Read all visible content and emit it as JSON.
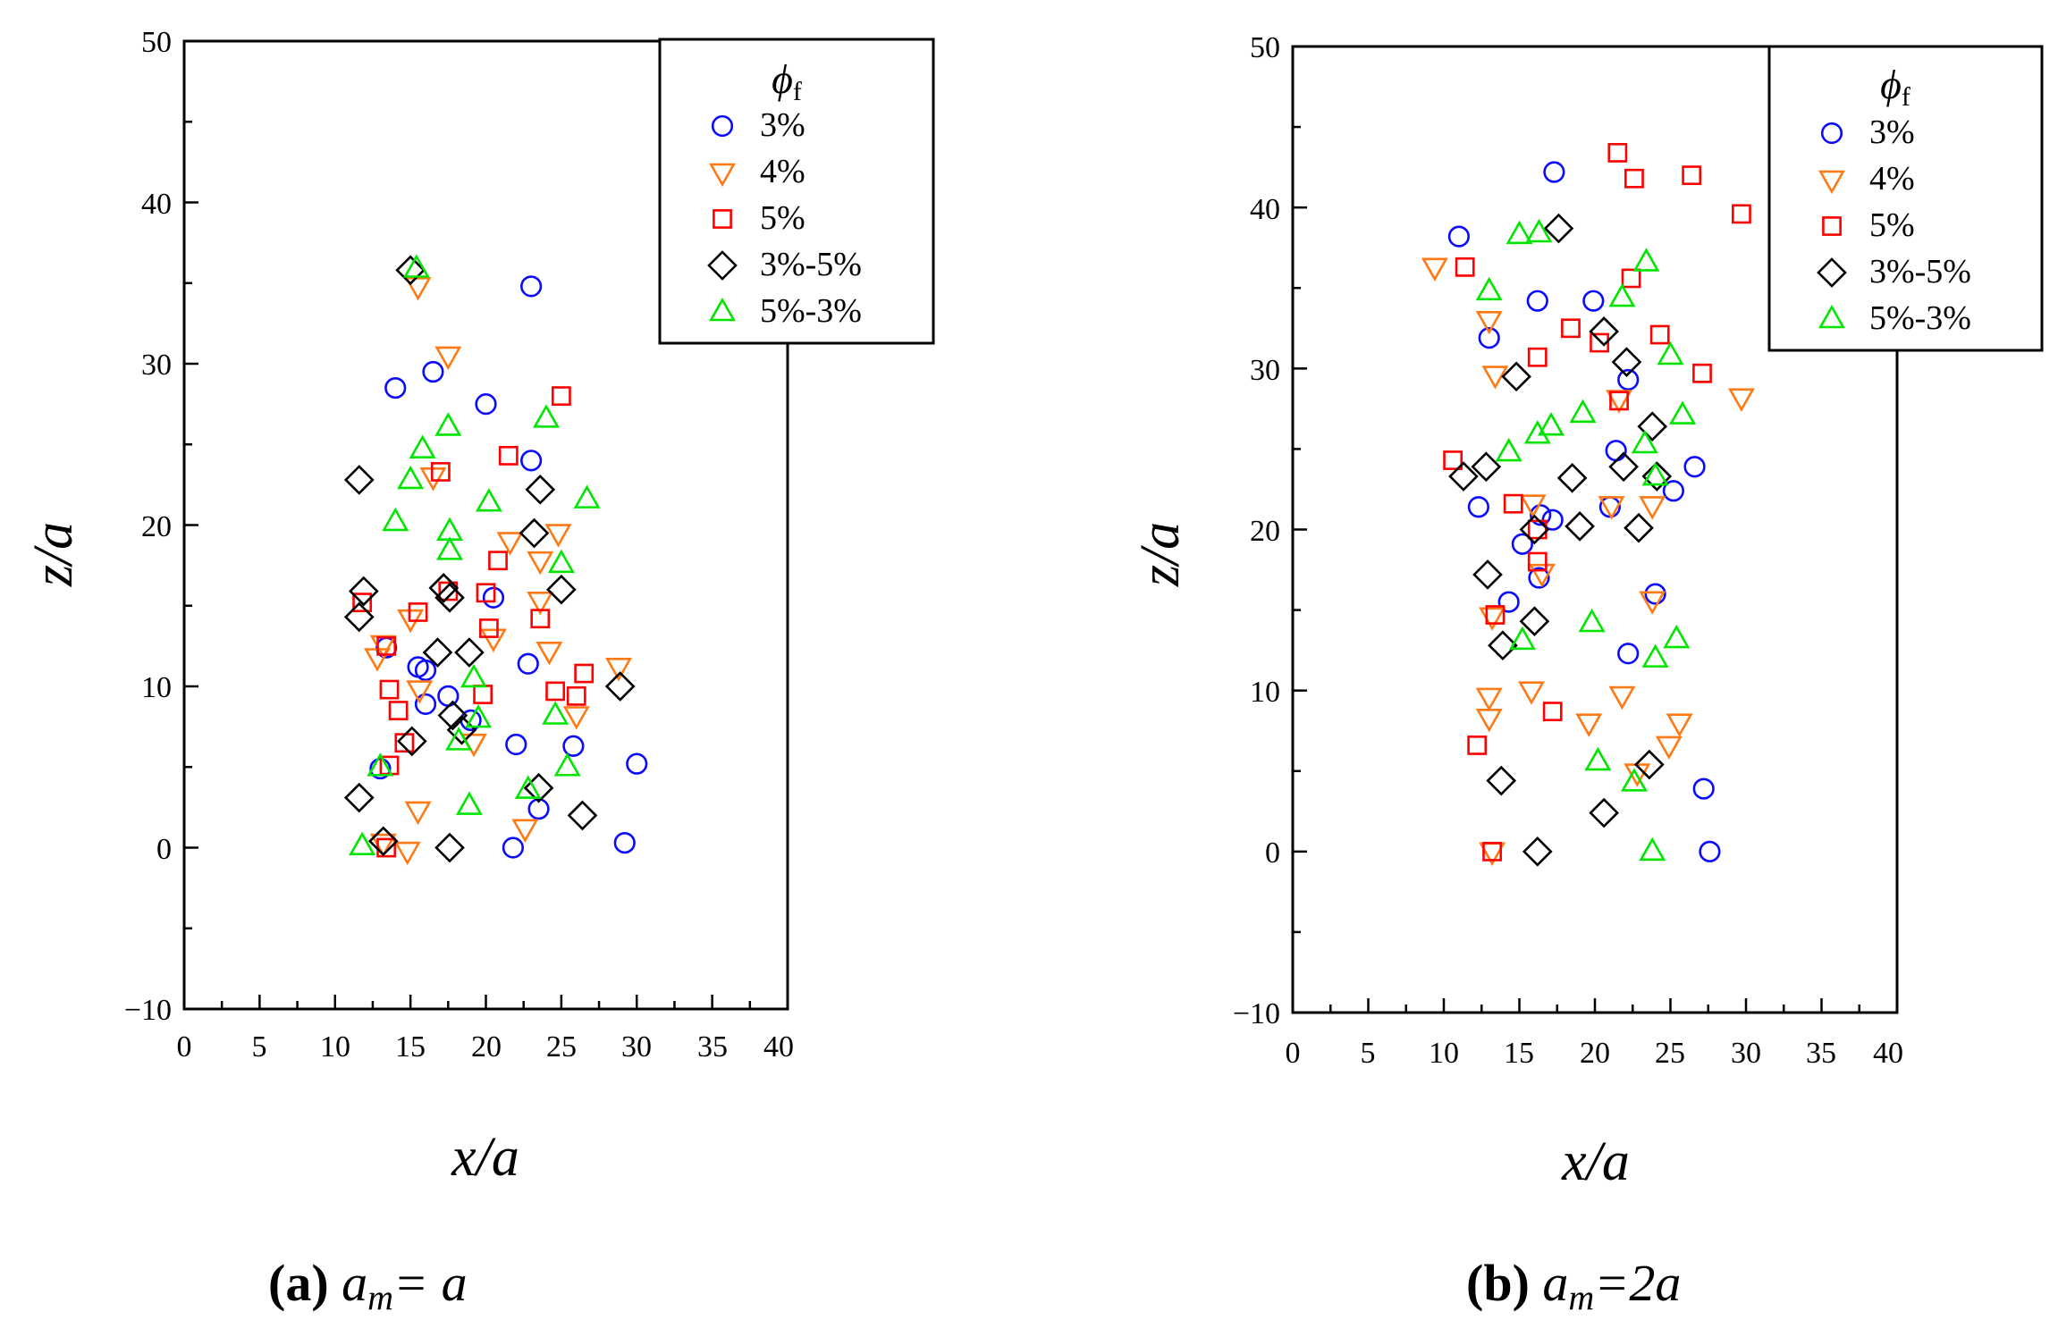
{
  "colors": {
    "3%": "#0a0aff",
    "4%": "#ff7a14",
    "5%": "#ff0000",
    "3%-5%": "#000000",
    "5%-3%": "#00e600"
  },
  "chart_data": [
    {
      "type": "scatter",
      "caption": {
        "label": "(a)",
        "var": "a",
        "sub": "m",
        "rhs": "= a"
      },
      "xlabel": "x/a",
      "ylabel": "z/a",
      "xlim": [
        0,
        40
      ],
      "ylim": [
        -10,
        50
      ],
      "xticks": [
        "0",
        "5",
        "10",
        "15",
        "20",
        "25",
        "30",
        "35",
        "40"
      ],
      "yticks": [
        "−10",
        "0",
        "10",
        "20",
        "30",
        "40",
        "50"
      ],
      "legend": {
        "title": "ϕ",
        "title_sub": "f",
        "position": "top-right",
        "entries": [
          "3%",
          "4%",
          "5%",
          "3%-5%",
          "5%-3%"
        ]
      },
      "series": [
        {
          "name": "3%",
          "marker": "circle",
          "points": [
            [
              23,
              34.8
            ],
            [
              16.5,
              29.5
            ],
            [
              14,
              28.5
            ],
            [
              20,
              27.5
            ],
            [
              23,
              24
            ],
            [
              20.5,
              15.5
            ],
            [
              15.5,
              11.2
            ],
            [
              16,
              11
            ],
            [
              17.5,
              9.4
            ],
            [
              16,
              8.9
            ],
            [
              19,
              7.9
            ],
            [
              22.8,
              11.4
            ],
            [
              22,
              6.4
            ],
            [
              25.8,
              6.3
            ],
            [
              30,
              5.2
            ],
            [
              13,
              4.9
            ],
            [
              23.5,
              2.4
            ],
            [
              29.2,
              0.3
            ],
            [
              21.8,
              0
            ],
            [
              13.4,
              12.4
            ]
          ]
        },
        {
          "name": "4%",
          "marker": "triangle-down",
          "points": [
            [
              15.5,
              34.8
            ],
            [
              17.5,
              30.5
            ],
            [
              16.5,
              23
            ],
            [
              24.8,
              19.5
            ],
            [
              21.6,
              19
            ],
            [
              23.6,
              17.8
            ],
            [
              23.6,
              15.3
            ],
            [
              20.5,
              13
            ],
            [
              24.2,
              12.2
            ],
            [
              15,
              14.2
            ],
            [
              12.8,
              11.8
            ],
            [
              28.8,
              11.2
            ],
            [
              15.6,
              9.8
            ],
            [
              26,
              8.2
            ],
            [
              19.2,
              6.5
            ],
            [
              15.5,
              2.3
            ],
            [
              22.6,
              1.2
            ],
            [
              14.8,
              -0.2
            ],
            [
              13.2,
              0.3
            ],
            [
              13.2,
              12.6
            ]
          ]
        },
        {
          "name": "5%",
          "marker": "square",
          "points": [
            [
              25,
              28
            ],
            [
              21.5,
              24.3
            ],
            [
              17,
              23.3
            ],
            [
              20.8,
              17.8
            ],
            [
              17.5,
              15.9
            ],
            [
              20,
              15.8
            ],
            [
              11.8,
              15.2
            ],
            [
              15.5,
              14.6
            ],
            [
              23.6,
              14.2
            ],
            [
              20.2,
              13.6
            ],
            [
              13.4,
              12.5
            ],
            [
              26.5,
              10.8
            ],
            [
              13.6,
              9.8
            ],
            [
              19.8,
              9.5
            ],
            [
              24.6,
              9.7
            ],
            [
              26,
              9.4
            ],
            [
              14.2,
              8.5
            ],
            [
              14.6,
              6.5
            ],
            [
              13.6,
              5.1
            ],
            [
              13.4,
              0
            ]
          ]
        },
        {
          "name": "3%-5%",
          "marker": "diamond",
          "points": [
            [
              15,
              35.8
            ],
            [
              11.6,
              22.8
            ],
            [
              23.6,
              22.2
            ],
            [
              23.2,
              19.5
            ],
            [
              17.2,
              16.1
            ],
            [
              17.6,
              15.5
            ],
            [
              25,
              16
            ],
            [
              11.9,
              15.9
            ],
            [
              11.6,
              14.3
            ],
            [
              16.8,
              12.1
            ],
            [
              18.9,
              12.1
            ],
            [
              28.9,
              10
            ],
            [
              17.8,
              8.2
            ],
            [
              18.4,
              7.3
            ],
            [
              15.1,
              6.6
            ],
            [
              11.6,
              3.1
            ],
            [
              23.5,
              3.7
            ],
            [
              26.4,
              2
            ],
            [
              13.2,
              0.4
            ],
            [
              17.6,
              0
            ]
          ]
        },
        {
          "name": "5%-3%",
          "marker": "triangle-up",
          "points": [
            [
              15.4,
              35.9
            ],
            [
              15.8,
              24.7
            ],
            [
              17.5,
              26.1
            ],
            [
              24,
              26.6
            ],
            [
              15,
              22.8
            ],
            [
              20.2,
              21.4
            ],
            [
              26.7,
              21.6
            ],
            [
              14,
              20.2
            ],
            [
              17.6,
              19.6
            ],
            [
              17.6,
              18.4
            ],
            [
              25,
              17.6
            ],
            [
              19.2,
              10.5
            ],
            [
              19.5,
              8
            ],
            [
              24.6,
              8.2
            ],
            [
              18.2,
              6.6
            ],
            [
              25.4,
              5
            ],
            [
              13,
              5
            ],
            [
              18.9,
              2.6
            ],
            [
              22.8,
              3.6
            ],
            [
              11.8,
              0.1
            ]
          ]
        }
      ]
    },
    {
      "type": "scatter",
      "caption": {
        "label": "(b)",
        "var": "a",
        "sub": "m",
        "rhs": "=2a"
      },
      "xlabel": "x/a",
      "ylabel": "z/a",
      "xlim": [
        0,
        40
      ],
      "ylim": [
        -10,
        50
      ],
      "xticks": [
        "0",
        "5",
        "10",
        "15",
        "20",
        "25",
        "30",
        "35",
        "40"
      ],
      "yticks": [
        "−10",
        "0",
        "10",
        "20",
        "30",
        "40",
        "50"
      ],
      "legend": {
        "title": "ϕ",
        "title_sub": "f",
        "position": "top-right",
        "entries": [
          "3%",
          "4%",
          "5%",
          "3%-5%",
          "5%-3%"
        ]
      },
      "series": [
        {
          "name": "3%",
          "marker": "circle",
          "points": [
            [
              17.3,
              42.2
            ],
            [
              11,
              38.2
            ],
            [
              16.2,
              34.2
            ],
            [
              19.9,
              34.2
            ],
            [
              13,
              31.9
            ],
            [
              22.2,
              29.3
            ],
            [
              21.4,
              24.9
            ],
            [
              26.6,
              23.9
            ],
            [
              25.2,
              22.4
            ],
            [
              12.3,
              21.4
            ],
            [
              21,
              21.4
            ],
            [
              16.4,
              20.9
            ],
            [
              17.2,
              20.6
            ],
            [
              15.2,
              19.1
            ],
            [
              16.3,
              17
            ],
            [
              14.3,
              15.5
            ],
            [
              24,
              16
            ],
            [
              22.2,
              12.3
            ],
            [
              27.2,
              3.9
            ],
            [
              27.6,
              0
            ]
          ]
        },
        {
          "name": "4%",
          "marker": "triangle-down",
          "points": [
            [
              9.4,
              36.3
            ],
            [
              13,
              33
            ],
            [
              13.4,
              29.6
            ],
            [
              21.6,
              28.1
            ],
            [
              29.7,
              28.2
            ],
            [
              15.9,
              21.6
            ],
            [
              21.1,
              21.5
            ],
            [
              23.8,
              21.5
            ],
            [
              16.5,
              17.3
            ],
            [
              23.8,
              15.6
            ],
            [
              13.2,
              14.6
            ],
            [
              13,
              9.6
            ],
            [
              15.8,
              10
            ],
            [
              21.8,
              9.7
            ],
            [
              13,
              8.3
            ],
            [
              25.6,
              8
            ],
            [
              19.6,
              8
            ],
            [
              24.9,
              6.6
            ],
            [
              22.8,
              4.9
            ],
            [
              13.2,
              0
            ]
          ]
        },
        {
          "name": "5%",
          "marker": "square",
          "points": [
            [
              21.5,
              43.4
            ],
            [
              22.6,
              41.8
            ],
            [
              26.4,
              42
            ],
            [
              29.7,
              39.6
            ],
            [
              11.4,
              36.3
            ],
            [
              22.4,
              35.6
            ],
            [
              18.4,
              32.5
            ],
            [
              20.3,
              31.6
            ],
            [
              24.3,
              32.1
            ],
            [
              16.2,
              30.7
            ],
            [
              21.6,
              28
            ],
            [
              27.1,
              29.7
            ],
            [
              10.6,
              24.3
            ],
            [
              14.6,
              21.6
            ],
            [
              16.2,
              20
            ],
            [
              16.2,
              18
            ],
            [
              13.4,
              14.7
            ],
            [
              17.2,
              8.7
            ],
            [
              12.2,
              6.6
            ],
            [
              13.2,
              0
            ]
          ]
        },
        {
          "name": "3%-5%",
          "marker": "diamond",
          "points": [
            [
              17.6,
              38.7
            ],
            [
              20.6,
              32.3
            ],
            [
              22.1,
              30.4
            ],
            [
              14.8,
              29.5
            ],
            [
              23.8,
              26.4
            ],
            [
              11.3,
              23.3
            ],
            [
              12.8,
              23.9
            ],
            [
              21.9,
              23.9
            ],
            [
              24.1,
              23.3
            ],
            [
              18.5,
              23.2
            ],
            [
              16,
              20
            ],
            [
              19,
              20.2
            ],
            [
              22.9,
              20.1
            ],
            [
              12.9,
              17.2
            ],
            [
              16,
              14.3
            ],
            [
              13.9,
              12.8
            ],
            [
              23.6,
              5.4
            ],
            [
              20.6,
              2.4
            ],
            [
              13.8,
              4.4
            ],
            [
              16.2,
              0
            ]
          ]
        },
        {
          "name": "5%-3%",
          "marker": "triangle-up",
          "points": [
            [
              15,
              38.3
            ],
            [
              16.3,
              38.4
            ],
            [
              23.4,
              36.6
            ],
            [
              13,
              34.8
            ],
            [
              21.8,
              34.4
            ],
            [
              25,
              30.8
            ],
            [
              19.2,
              27.2
            ],
            [
              25.8,
              27.1
            ],
            [
              17.1,
              26.4
            ],
            [
              16.2,
              25.9
            ],
            [
              23.3,
              25.3
            ],
            [
              14.3,
              24.8
            ],
            [
              24,
              23.3
            ],
            [
              19.8,
              14.2
            ],
            [
              15.2,
              13.1
            ],
            [
              25.4,
              13.2
            ],
            [
              24,
              12
            ],
            [
              20.2,
              5.6
            ],
            [
              22.6,
              4.3
            ],
            [
              23.8,
              0
            ]
          ]
        }
      ]
    }
  ]
}
